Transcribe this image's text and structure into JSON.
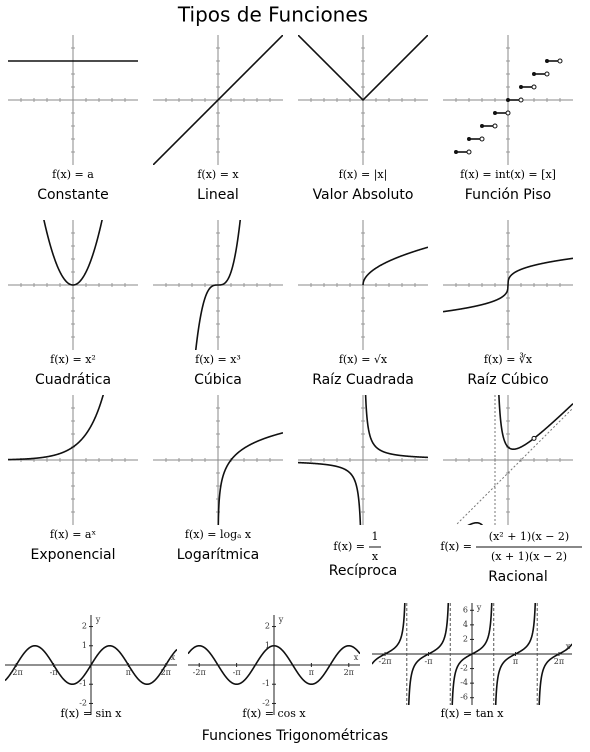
{
  "title": "Tipos de Funciones",
  "panels": [
    {
      "formula": "f(x) = a",
      "name": "Constante"
    },
    {
      "formula": "f(x) = x",
      "name": "Lineal"
    },
    {
      "formula": "f(x) = |x|",
      "name": "Valor Absoluto"
    },
    {
      "formula": "f(x) = int(x) = [x]",
      "name": "Función Piso"
    },
    {
      "formula": "f(x) = x²",
      "name": "Cuadrática"
    },
    {
      "formula": "f(x) = x³",
      "name": "Cúbica"
    },
    {
      "formula": "f(x) = √x",
      "name": "Raíz Cuadrada"
    },
    {
      "formula": "f(x) = ∛x",
      "name": "Raíz Cúbico"
    },
    {
      "formula": "f(x) = aˣ",
      "name": "Exponencial"
    },
    {
      "formula": "f(x) = logₐ x",
      "name": "Logarítmica"
    },
    {
      "formula_prefix": "f(x) =",
      "numerator": "1",
      "denominator": "x",
      "name": "Recíproca"
    },
    {
      "formula_prefix": "f(x) =",
      "numerator": "(x² + 1)(x − 2)",
      "denominator": "(x + 1)(x − 2)",
      "name": "Racional"
    }
  ],
  "trig": {
    "title": "Funciones Trigonométricas",
    "panels": [
      {
        "formula": "f(x) = sin x",
        "x_labels": [
          "-2π",
          "-π",
          "π",
          "2π"
        ],
        "y_labels": [
          "2",
          "1",
          "-1",
          "-2"
        ],
        "axis_x": "x",
        "axis_y": "y"
      },
      {
        "formula": "f(x) = cos x",
        "x_labels": [
          "-2π",
          "-π",
          "π",
          "2π"
        ],
        "y_labels": [
          "2",
          "1",
          "-1",
          "-2"
        ],
        "axis_x": "x",
        "axis_y": "y"
      },
      {
        "formula": "f(x) = tan x",
        "x_labels": [
          "-2π",
          "-π",
          "π",
          "2π"
        ],
        "y_labels": [
          "6",
          "4",
          "2",
          "-2",
          "-4",
          "-6"
        ],
        "axis_x": "x",
        "axis_y": "y"
      }
    ]
  }
}
